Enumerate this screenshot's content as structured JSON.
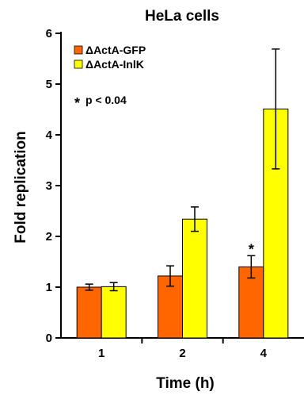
{
  "chart_data": {
    "type": "bar",
    "title": "HeLa cells",
    "xlabel": "Time (h)",
    "ylabel": "Fold replication",
    "categories": [
      "1",
      "2",
      "4"
    ],
    "ylim": [
      0,
      6
    ],
    "yticks": [
      "0",
      "1",
      "2",
      "3",
      "4",
      "5",
      "6"
    ],
    "series": [
      {
        "name": "ΔActA-GFP",
        "color": "#ff6600",
        "values": [
          1.0,
          1.22,
          1.4
        ],
        "errors": [
          0.06,
          0.2,
          0.22
        ]
      },
      {
        "name": "ΔActA-InlK",
        "color": "#ffff00",
        "values": [
          1.01,
          2.34,
          4.51
        ],
        "errors": [
          0.08,
          0.24,
          1.18
        ]
      }
    ],
    "legend_position": "top-left",
    "annotation": "p < 0.04",
    "annotation_marker": "*",
    "significance": {
      "series": 0,
      "category": 2,
      "marker": "*"
    },
    "grid": false
  }
}
